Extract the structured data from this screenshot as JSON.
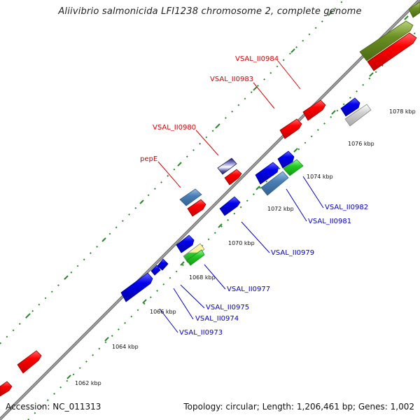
{
  "title": "Aliivibrio salmonicida LFI1238 chromosome 2, complete genome",
  "footer": {
    "accession": "Accession: NC_011313",
    "summary": "Topology: circular; Length: 1,206,461 bp; Genes: 1,002"
  },
  "scale_labels": [
    "1062 kbp",
    "1064 kbp",
    "1066 kbp",
    "1068 kbp",
    "1070 kbp",
    "1072 kbp",
    "1074 kbp",
    "1076 kbp",
    "1078 kbp"
  ],
  "gene_labels": {
    "VSAL_II0984": "VSAL_II0984",
    "VSAL_II0983": "VSAL_II0983",
    "VSAL_II0980": "VSAL_II0980",
    "pepE": "pepE",
    "VSAL_II0982": "VSAL_II0982",
    "VSAL_II0981": "VSAL_II0981",
    "VSAL_II0979": "VSAL_II0979",
    "VSAL_II0977": "VSAL_II0977",
    "VSAL_II0975": "VSAL_II0975",
    "VSAL_II0974": "VSAL_II0974",
    "VSAL_II0973": "VSAL_II0973"
  },
  "colors": {
    "backbone": "#8a8a8a",
    "red": "#ff0000",
    "blue": "#0000ee",
    "steelblue": "#4a7fb5",
    "green": "#22cc22",
    "olive": "#6b8e23",
    "grey": "#c8c8c8",
    "navy": "#1a1a6a",
    "tick_green": "#228822",
    "label_red": "#dd0000",
    "label_blue": "#0000cc"
  }
}
